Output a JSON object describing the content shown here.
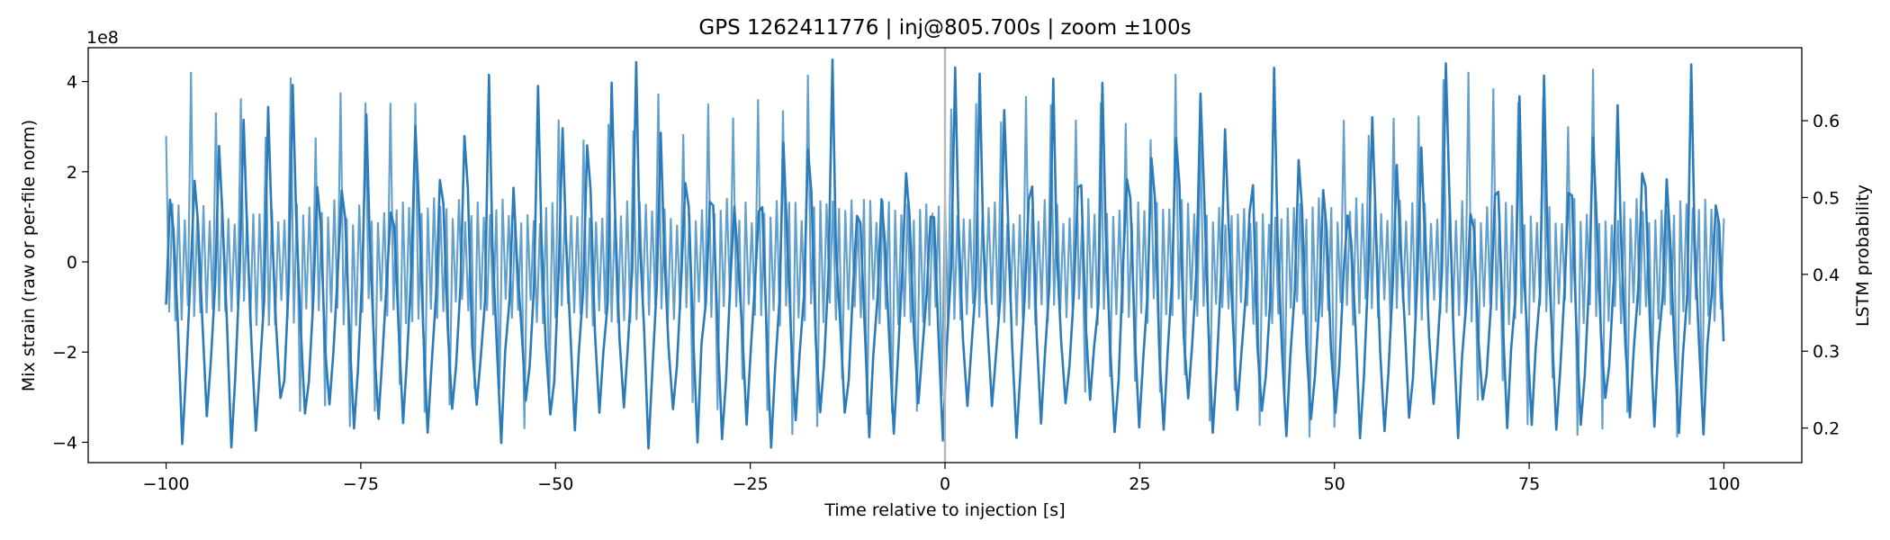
{
  "chart_data": {
    "type": "line",
    "title": "GPS 1262411776 | inj@805.700s | zoom ±100s",
    "xlabel": "Time relative to injection [s]",
    "ylabel_left": "Mix strain (raw or per-file norm)",
    "ylabel_right": "LSTM probability",
    "left_offset_label": "1e8",
    "xlim": [
      -110,
      110
    ],
    "ylim_left": [
      -4.45,
      4.75
    ],
    "ylim_right": [
      0.155,
      0.695
    ],
    "xticks": [
      -100,
      -75,
      -50,
      -25,
      0,
      25,
      50,
      75,
      100
    ],
    "xtick_labels": [
      "−100",
      "−75",
      "−50",
      "−25",
      "0",
      "25",
      "50",
      "75",
      "100"
    ],
    "yticks_left": [
      -4,
      -2,
      0,
      2,
      4
    ],
    "ytick_labels_left": [
      "−4",
      "−2",
      "0",
      "2",
      "4"
    ],
    "yticks_right": [
      0.2,
      0.3,
      0.4,
      0.5,
      0.6
    ],
    "ytick_labels_right": [
      "0.2",
      "0.3",
      "0.4",
      "0.5",
      "0.6"
    ],
    "injection_marker_x": 0,
    "strain_series": {
      "name": "Mix strain",
      "units": "1e8",
      "x_range": [
        -100,
        100
      ],
      "carrier_period_s": 0.8,
      "band_mean_amplitude": 1.1,
      "spike_period_s": 3.15,
      "spike_max_amplitude": 4.3,
      "spike_min_amplitude": -3.9,
      "color": "#5b9bc9"
    },
    "probability_series": {
      "name": "LSTM probability",
      "x_range": [
        -100,
        100
      ],
      "cycle_period_s": 3.15,
      "peak_range": [
        0.47,
        0.68
      ],
      "trough_range": [
        0.17,
        0.24
      ],
      "color": "#2b7bba"
    },
    "colors": {
      "strain": "#5b9bc9",
      "probability": "#2b7bba",
      "marker": "#b8b8b8"
    }
  }
}
